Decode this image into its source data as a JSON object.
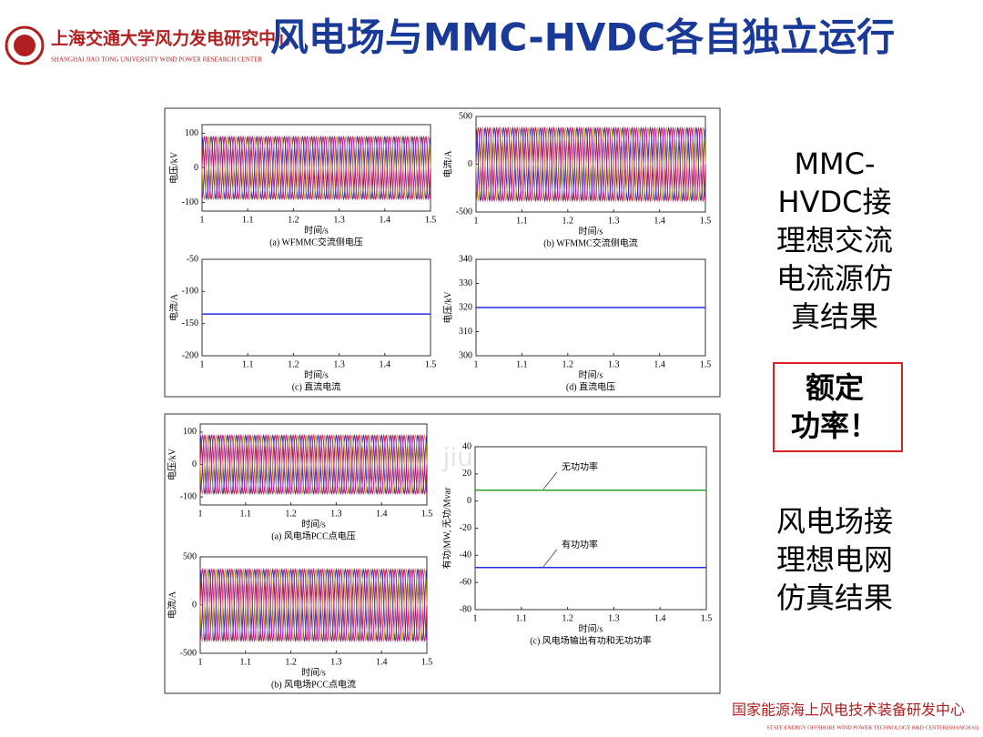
{
  "header": {
    "org": "上海交通大学风力发电研究中心",
    "org_en": "SHANGHAI JIAO TONG UNIVERSITY WIND POWER RESEARCH CENTER",
    "title": "风电场与MMC-HVDC各自独立运行"
  },
  "watermark": "jiudunyan.com",
  "figures": [
    {
      "panels": [
        {
          "type": "wave",
          "ylabel": "电压/kV",
          "xlabel": "时间/s",
          "caption": "(a) WFMMC交流侧电压",
          "xlim": [
            1,
            1.5
          ],
          "xticks": [
            1,
            1.1,
            1.2,
            1.3,
            1.4,
            1.5
          ],
          "ylim": [
            -125,
            125
          ],
          "yticks": [
            -100,
            0,
            100
          ],
          "amplitude": 90,
          "frequency": 50,
          "colors": [
            "#e02020",
            "#2030e0",
            "#d0a000",
            "#a020c0"
          ]
        },
        {
          "type": "wave",
          "ylabel": "电流/A",
          "xlabel": "时间/s",
          "caption": "(b) WFMMC交流侧电流",
          "xlim": [
            1,
            1.5
          ],
          "xticks": [
            1,
            1.1,
            1.2,
            1.3,
            1.4,
            1.5
          ],
          "ylim": [
            -500,
            500
          ],
          "yticks": [
            -500,
            0,
            500
          ],
          "amplitude": 380,
          "frequency": 50,
          "colors": [
            "#e02020",
            "#2030e0",
            "#d0a000",
            "#a020c0"
          ]
        },
        {
          "type": "line",
          "ylabel": "电流/A",
          "xlabel": "时间/s",
          "caption": "(c) 直流电流",
          "xlim": [
            1,
            1.5
          ],
          "xticks": [
            1,
            1.1,
            1.2,
            1.3,
            1.4,
            1.5
          ],
          "ylim": [
            -200,
            -50
          ],
          "yticks": [
            -200,
            -150,
            -100,
            -50
          ],
          "series": [
            {
              "color": "#2030e0",
              "value": -135
            }
          ]
        },
        {
          "type": "line",
          "ylabel": "电压/kV",
          "xlabel": "时间/s",
          "caption": "(d) 直流电压",
          "xlim": [
            1,
            1.5
          ],
          "xticks": [
            1,
            1.1,
            1.2,
            1.3,
            1.4,
            1.5
          ],
          "ylim": [
            300,
            340
          ],
          "yticks": [
            300,
            310,
            320,
            330,
            340
          ],
          "series": [
            {
              "color": "#2030e0",
              "value": 320
            }
          ]
        }
      ]
    },
    {
      "panels": [
        {
          "type": "wave",
          "ylabel": "电压/kV",
          "xlabel": "时间/s",
          "caption": "(a) 风电场PCC点电压",
          "xlim": [
            1,
            1.5
          ],
          "xticks": [
            1,
            1.1,
            1.2,
            1.3,
            1.4,
            1.5
          ],
          "ylim": [
            -125,
            125
          ],
          "yticks": [
            -100,
            0,
            100
          ],
          "amplitude": 90,
          "frequency": 50,
          "colors": [
            "#e02020",
            "#2030e0",
            "#d0a000",
            "#a020c0"
          ]
        },
        {
          "type": "wave",
          "ylabel": "电流/A",
          "xlabel": "时间/s",
          "caption": "(b) 风电场PCC点电流",
          "xlim": [
            1,
            1.5
          ],
          "xticks": [
            1,
            1.1,
            1.2,
            1.3,
            1.4,
            1.5
          ],
          "ylim": [
            -500,
            500
          ],
          "yticks": [
            -500,
            0,
            500
          ],
          "amplitude": 370,
          "frequency": 50,
          "colors": [
            "#e02020",
            "#2030e0",
            "#d0a000",
            "#a020c0"
          ]
        },
        {
          "type": "line",
          "ylabel": "有功/MW, 无功/Mvar",
          "xlabel": "时间/s",
          "caption": "(c) 风电场输出有功和无功功率",
          "xlim": [
            1,
            1.5
          ],
          "xticks": [
            1,
            1.1,
            1.2,
            1.3,
            1.4,
            1.5
          ],
          "ylim": [
            -80,
            40
          ],
          "yticks": [
            -80,
            -60,
            -40,
            -20,
            0,
            20,
            40
          ],
          "series": [
            {
              "name": "无功功率",
              "color": "#30a030",
              "value": 8
            },
            {
              "name": "有功功率",
              "color": "#2030e0",
              "value": -49
            }
          ]
        }
      ]
    }
  ],
  "side": {
    "text1": [
      "MMC-",
      "HVDC接",
      "理想交流",
      "电流源仿",
      "真结果"
    ],
    "highlight": [
      "额定",
      "功率！"
    ],
    "text2": [
      "风电场接",
      "理想电网",
      "仿真结果"
    ]
  },
  "footer": {
    "name": "国家能源海上风电技术装备研发中心",
    "name_en": "STATE ENERGY OFFSHORE WIND POWER TECHNOLOGY R&D CENTER(SHANGHAI)"
  }
}
